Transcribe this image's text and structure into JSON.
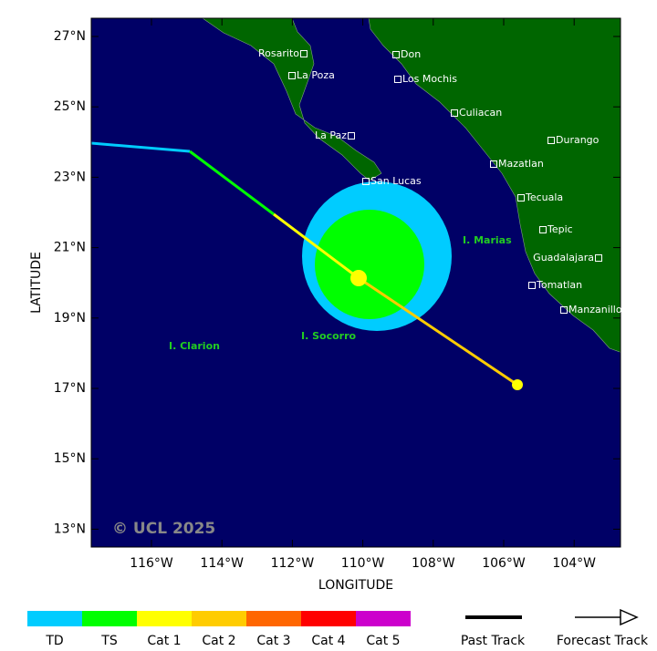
{
  "map": {
    "x_axis_title": "LONGITUDE",
    "y_axis_title": "LATITUDE",
    "lat_labels": [
      "27°N",
      "25°N",
      "23°N",
      "21°N",
      "19°N",
      "17°N",
      "15°N",
      "13°N"
    ],
    "lon_labels": [
      "116°W",
      "114°W",
      "112°W",
      "110°W",
      "108°W",
      "106°W",
      "104°W"
    ],
    "cities": [
      "Rosarito",
      "Don",
      "La Poza",
      "Los Mochis",
      "Culiacan",
      "La Paz",
      "Durango",
      "Mazatlan",
      "San Lucas",
      "Tecuala",
      "Tepic",
      "Guadalajara",
      "Tomatlan",
      "Manzanillo"
    ],
    "islands": [
      "I. Marias",
      "I. Clarion",
      "I. Socorro"
    ],
    "copyright": "© UCL 2025"
  },
  "legend": {
    "categories": [
      "TD",
      "TS",
      "Cat 1",
      "Cat 2",
      "Cat 3",
      "Cat 4",
      "Cat 5"
    ],
    "past_track": "Past Track",
    "forecast_track": "Forecast Track"
  }
}
